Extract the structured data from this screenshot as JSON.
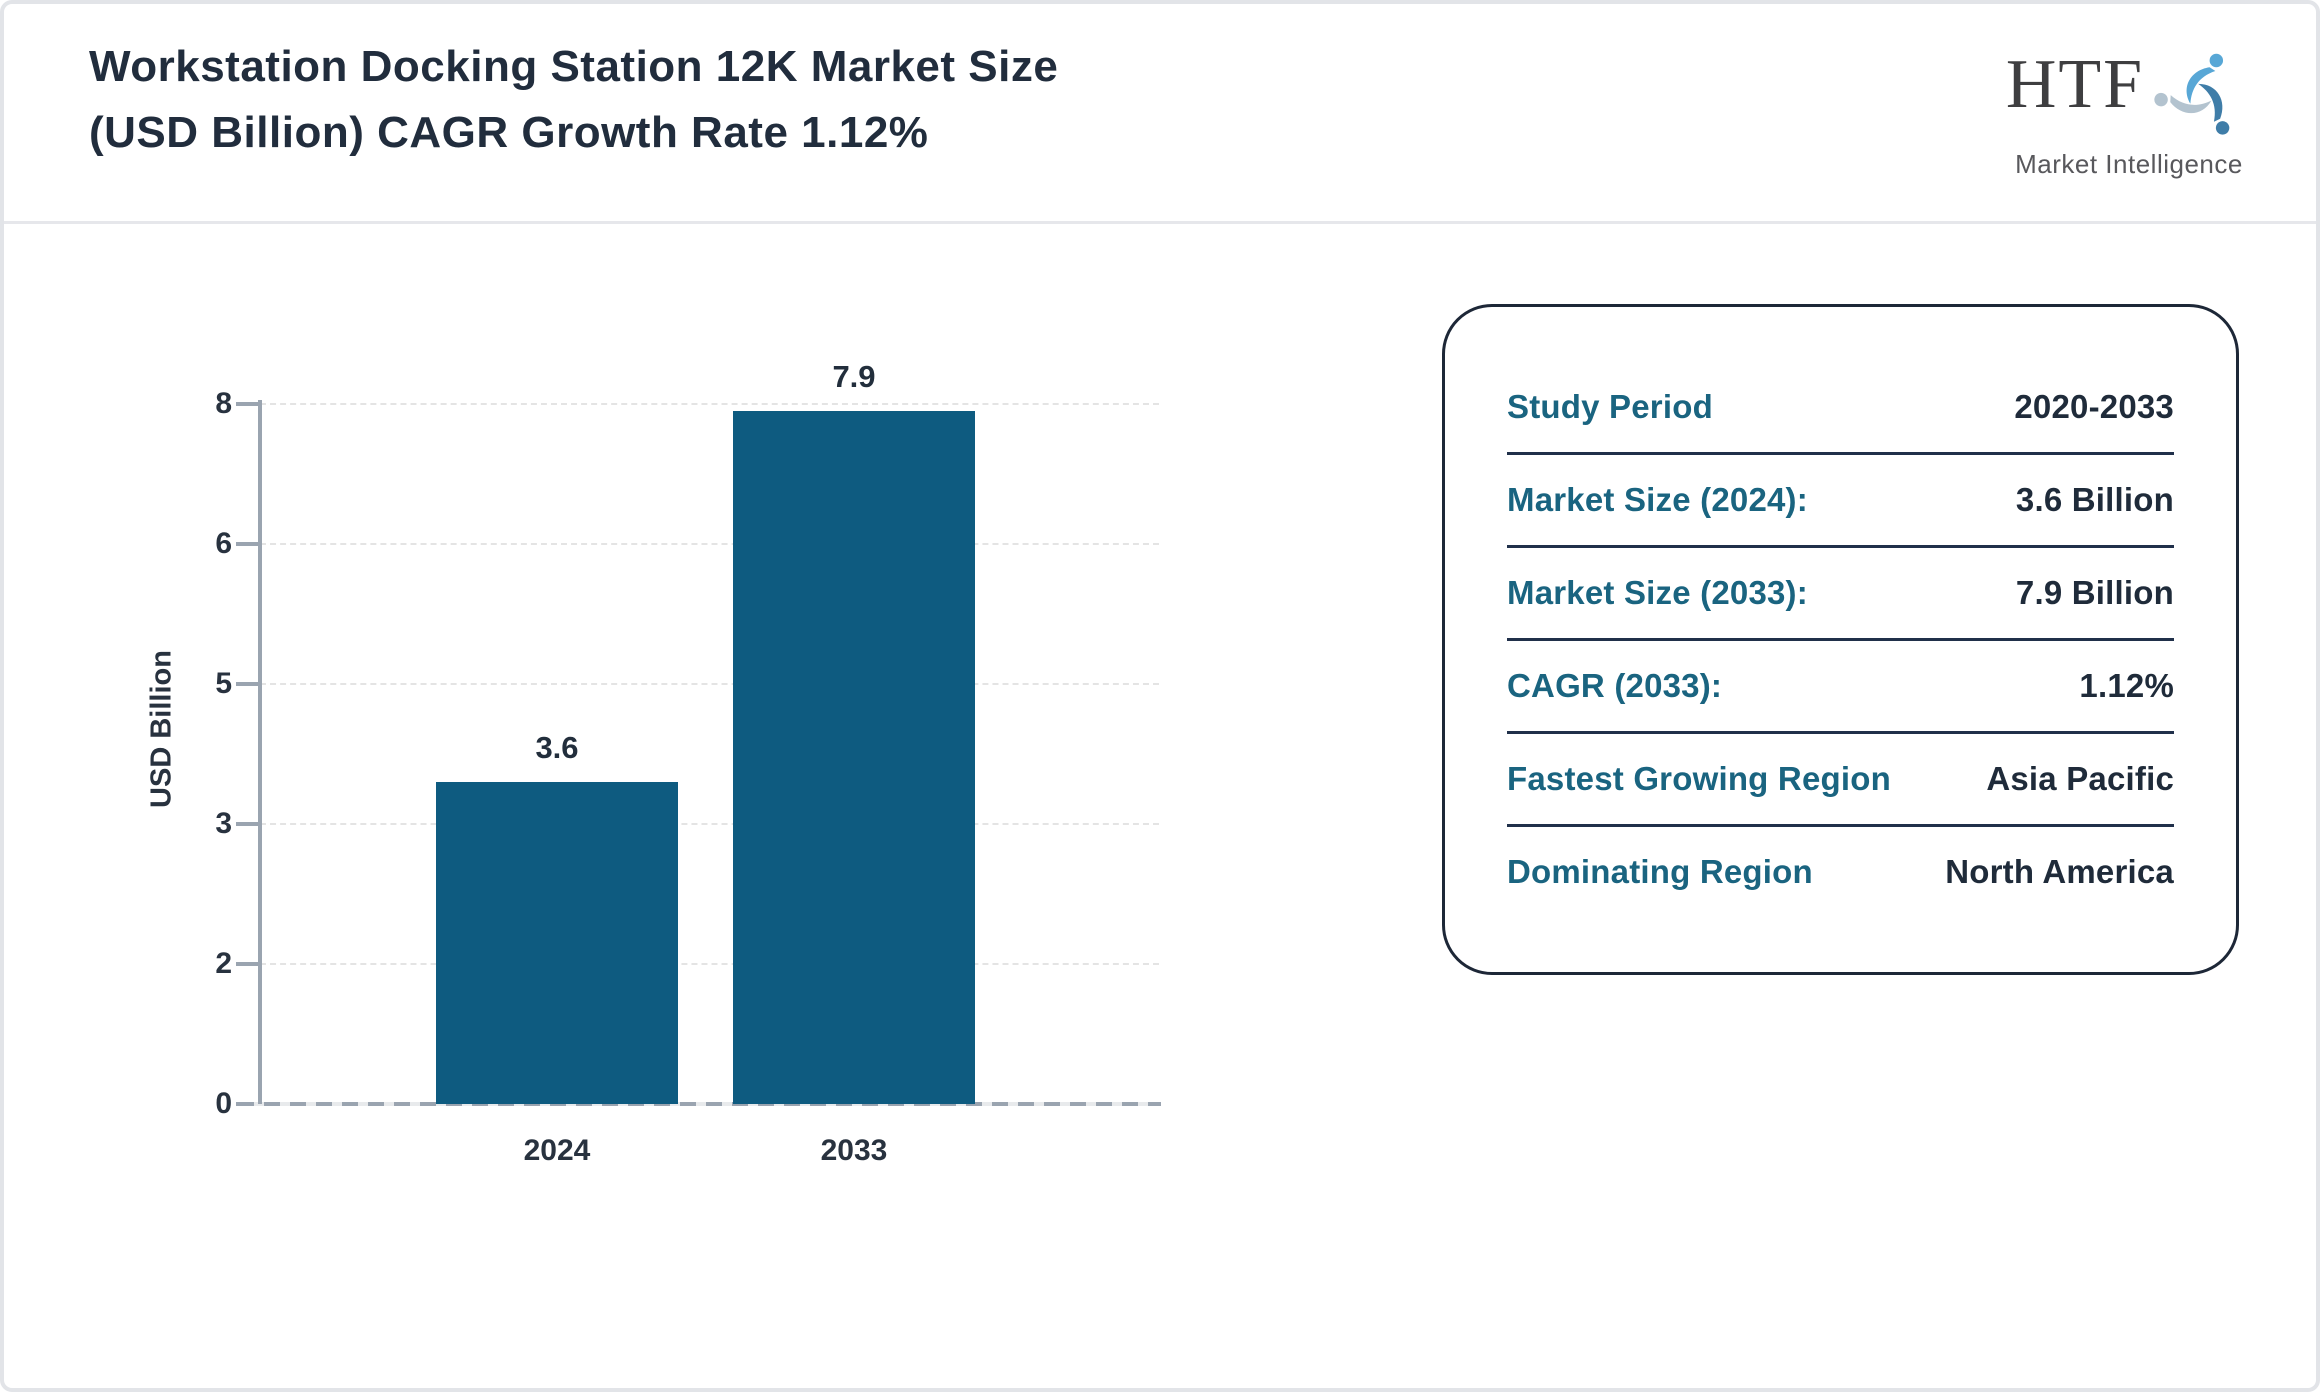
{
  "page": {
    "title": "Workstation Docking Station 12K Market Size\n(USD Billion) CAGR Growth Rate 1.12%"
  },
  "logo": {
    "name": "HTF",
    "subtitle": "Market Intelligence",
    "icon": "three-figures-swirl-icon",
    "colors": {
      "figure_top": "#58a7d6",
      "figure_right": "#3f7da8",
      "figure_left": "#b3c3cf"
    }
  },
  "chart_data": {
    "type": "bar",
    "title": "",
    "categories": [
      "2024",
      "2033"
    ],
    "values": [
      3.6,
      7.9
    ],
    "bar_labels": [
      "3.6",
      "7.9"
    ],
    "xlabel": "",
    "ylabel": "USD Billion",
    "yticks": [
      0,
      2,
      3,
      5,
      6,
      8
    ],
    "ylim": [
      0,
      8
    ],
    "grid": "horizontal-dashed",
    "legend": "none",
    "bar_color": "#0e5b80"
  },
  "summary_panel": {
    "rows": [
      {
        "label": "Study Period",
        "value": "2020-2033"
      },
      {
        "label": "Market Size (2024):",
        "value": "3.6 Billion"
      },
      {
        "label": "Market Size (2033):",
        "value": "7.9 Billion"
      },
      {
        "label": "CAGR (2033):",
        "value": "1.12%"
      },
      {
        "label": "Fastest Growing Region",
        "value": "Asia Pacific"
      },
      {
        "label": "Dominating Region",
        "value": "North America"
      }
    ]
  },
  "colors": {
    "accent_teal": "#1a6480",
    "navy_text": "#1f2b3a",
    "bar_fill": "#0e5b80",
    "axis_gray": "#9aa4b0",
    "grid_gray": "#e4e4e4",
    "page_border": "#e2e4e8"
  }
}
